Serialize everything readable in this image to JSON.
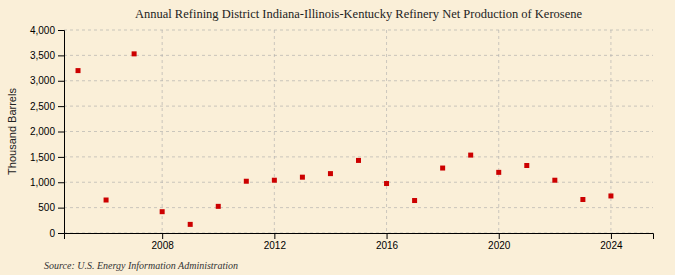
{
  "chart_data": {
    "type": "scatter",
    "title": "Annual Refining District Indiana-Illinois-Kentucky Refinery Net Production of Kerosene",
    "y_label": "Thousand Barrels",
    "annotations": [
      "Source: U.S. Energy Information Administration"
    ],
    "x": [
      2005,
      2006,
      2007,
      2008,
      2009,
      2010,
      2011,
      2012,
      2013,
      2014,
      2015,
      2016,
      2017,
      2018,
      2019,
      2020,
      2021,
      2022,
      2023,
      2024
    ],
    "values": [
      3200,
      650,
      3530,
      420,
      170,
      525,
      1020,
      1040,
      1100,
      1170,
      1430,
      975,
      640,
      1280,
      1535,
      1195,
      1330,
      1040,
      660,
      730
    ],
    "color": "#cc0000",
    "marker": "square",
    "xlim": [
      2004.5,
      2025.5
    ],
    "xticks": [
      2008,
      2012,
      2016,
      2020,
      2024
    ],
    "ylim": [
      0,
      4000
    ],
    "yticks": [
      0,
      500,
      {
        "value": 1000,
        "label": "1,000"
      },
      {
        "value": 1500,
        "label": "1,500"
      },
      {
        "value": 2000,
        "label": "2,000"
      },
      {
        "value": 2500,
        "label": "2,500"
      },
      {
        "value": 3000,
        "label": "3,000"
      },
      {
        "value": 3500,
        "label": "3,500"
      },
      {
        "value": 4000,
        "label": "4,000"
      }
    ],
    "grid": true
  }
}
